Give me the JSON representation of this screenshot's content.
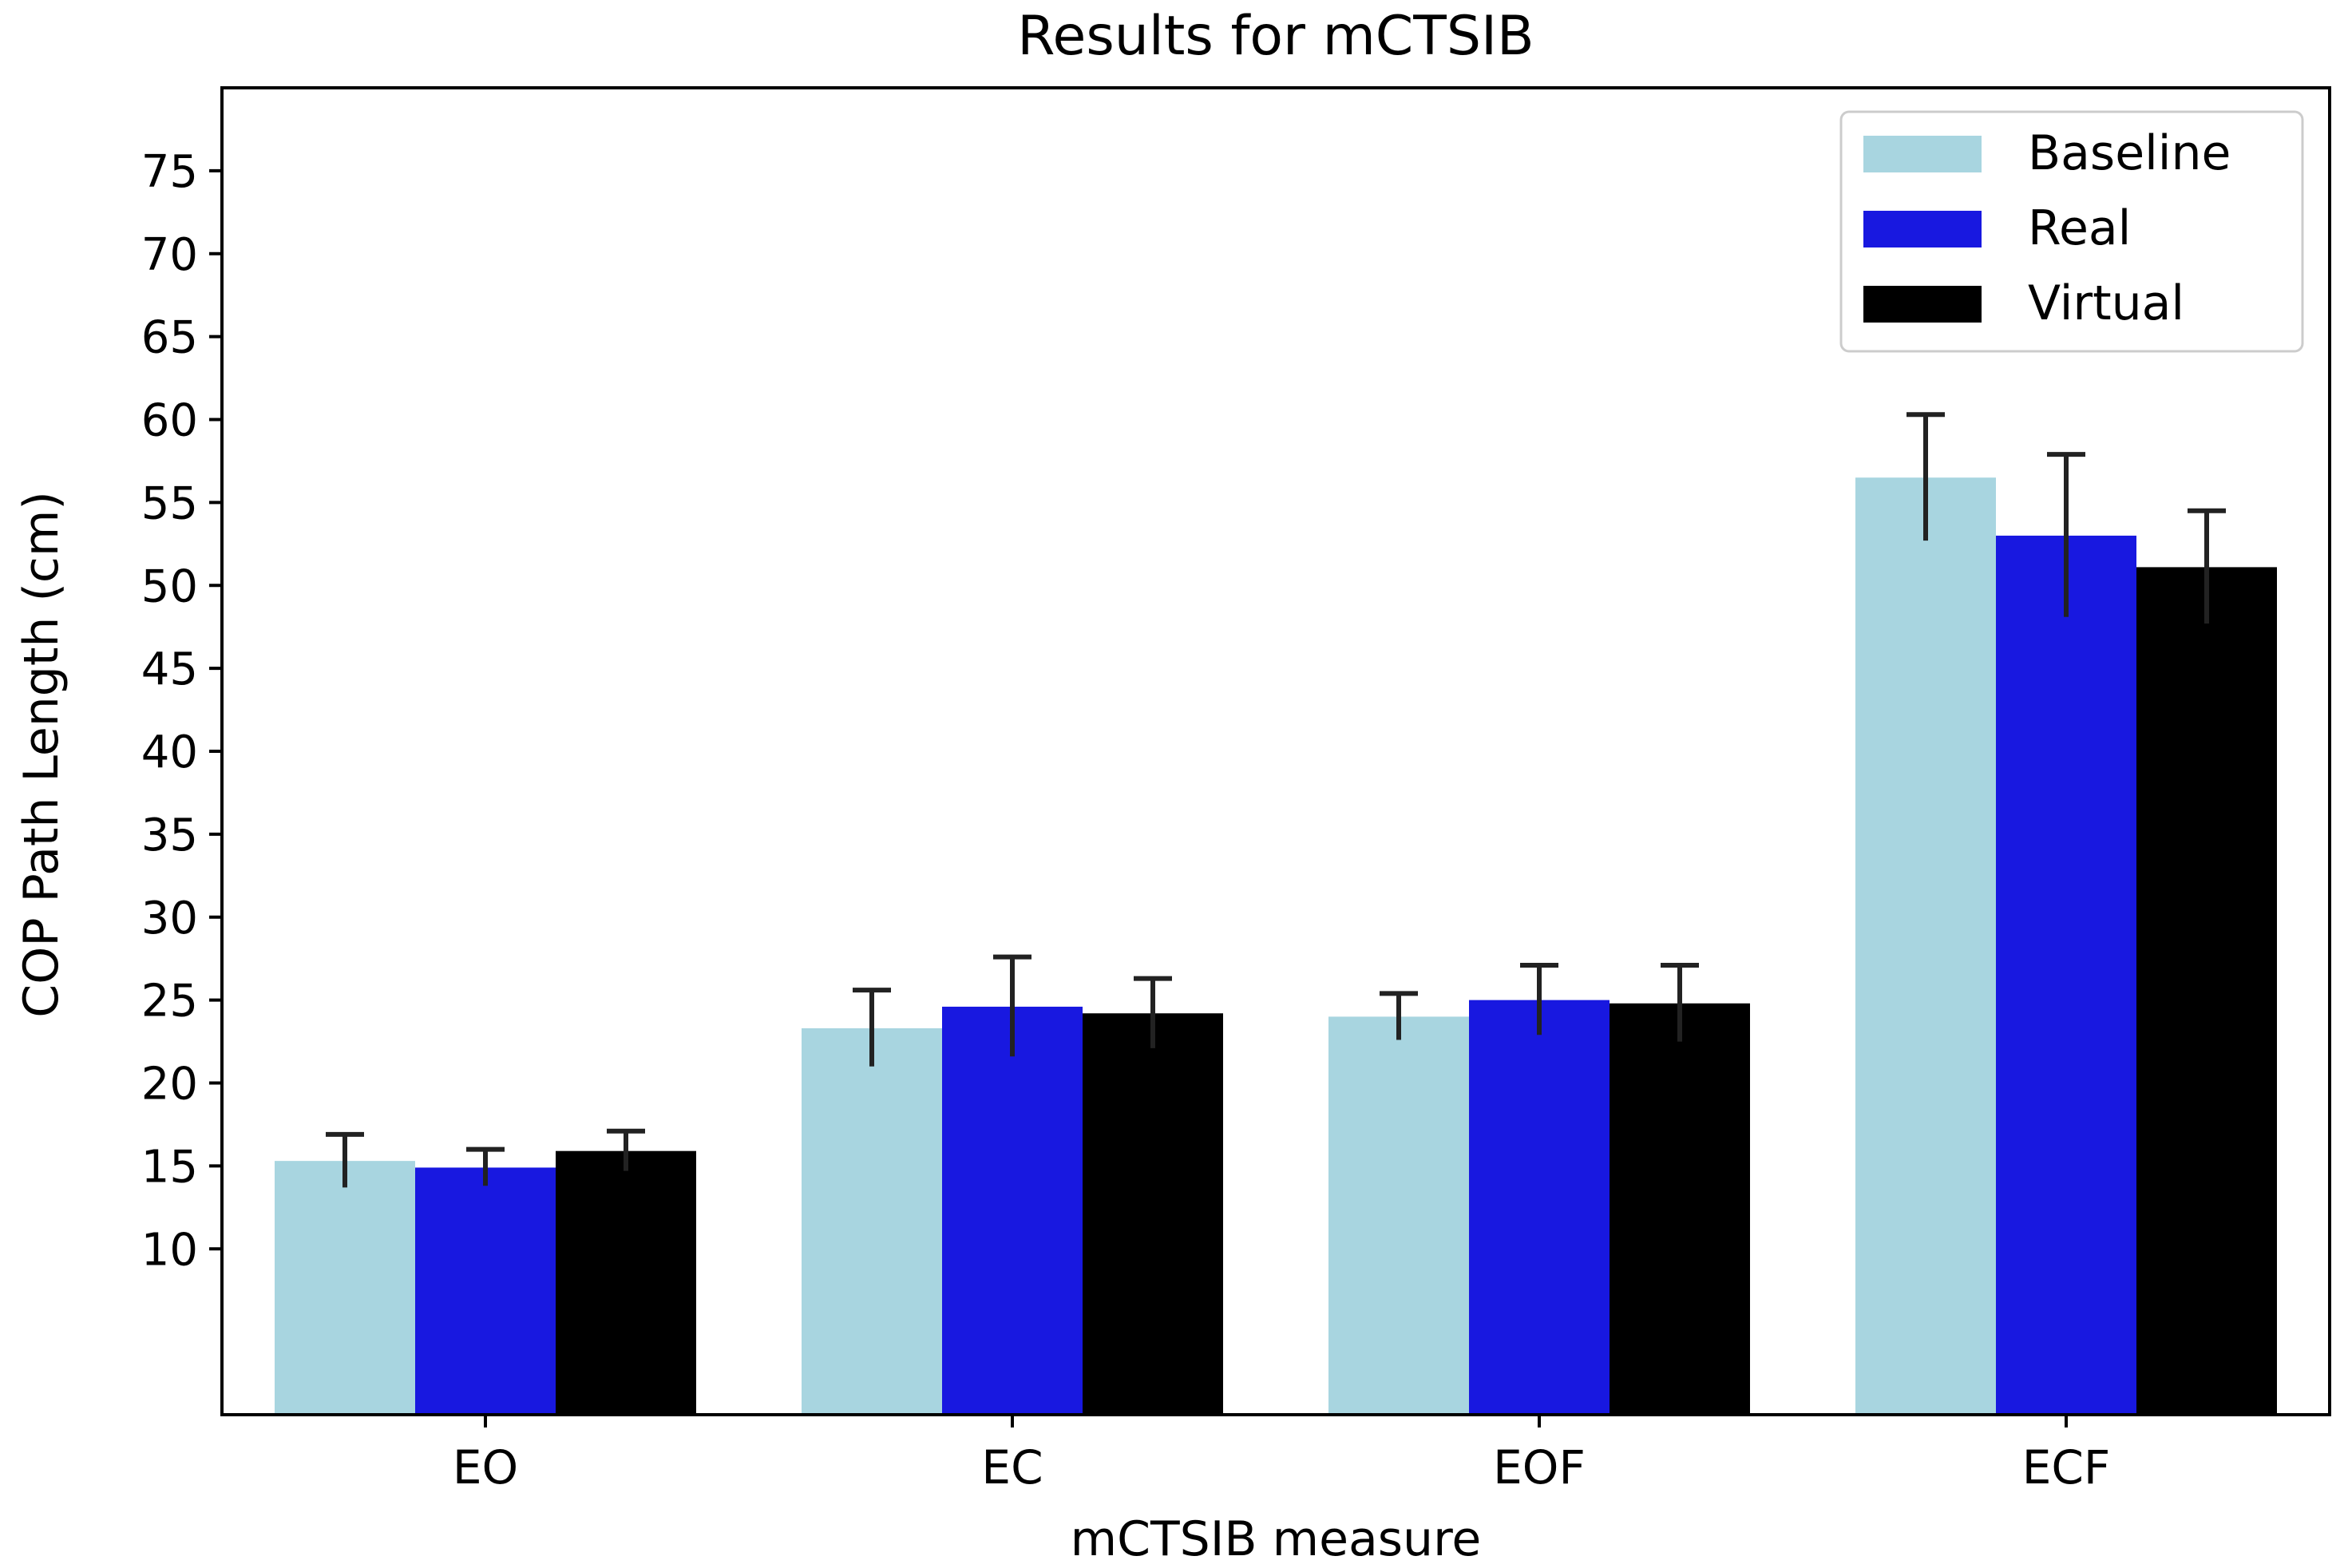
{
  "chart_data": {
    "type": "bar",
    "title": "Results for mCTSIB",
    "xlabel": "mCTSIB measure",
    "ylabel": "COP Path Length (cm)",
    "categories": [
      "EO",
      "EC",
      "EOF",
      "ECF"
    ],
    "ylim": [
      0,
      80
    ],
    "yticks": [
      10,
      15,
      20,
      25,
      30,
      35,
      40,
      45,
      50,
      55,
      60,
      65,
      70,
      75
    ],
    "legend_position": "top-right",
    "grid": false,
    "series": [
      {
        "name": "Baseline",
        "color": "#a8d5e0",
        "values": [
          15.3,
          23.3,
          24.0,
          56.5
        ],
        "errors": [
          1.6,
          2.3,
          1.4,
          3.8
        ]
      },
      {
        "name": "Real",
        "color": "#1818e0",
        "values": [
          14.9,
          24.6,
          25.0,
          53.0
        ],
        "errors": [
          1.1,
          3.0,
          2.1,
          4.9
        ]
      },
      {
        "name": "Virtual",
        "color": "#000000",
        "values": [
          15.9,
          24.2,
          24.8,
          51.1
        ],
        "errors": [
          1.2,
          2.1,
          2.3,
          3.4
        ]
      }
    ]
  }
}
